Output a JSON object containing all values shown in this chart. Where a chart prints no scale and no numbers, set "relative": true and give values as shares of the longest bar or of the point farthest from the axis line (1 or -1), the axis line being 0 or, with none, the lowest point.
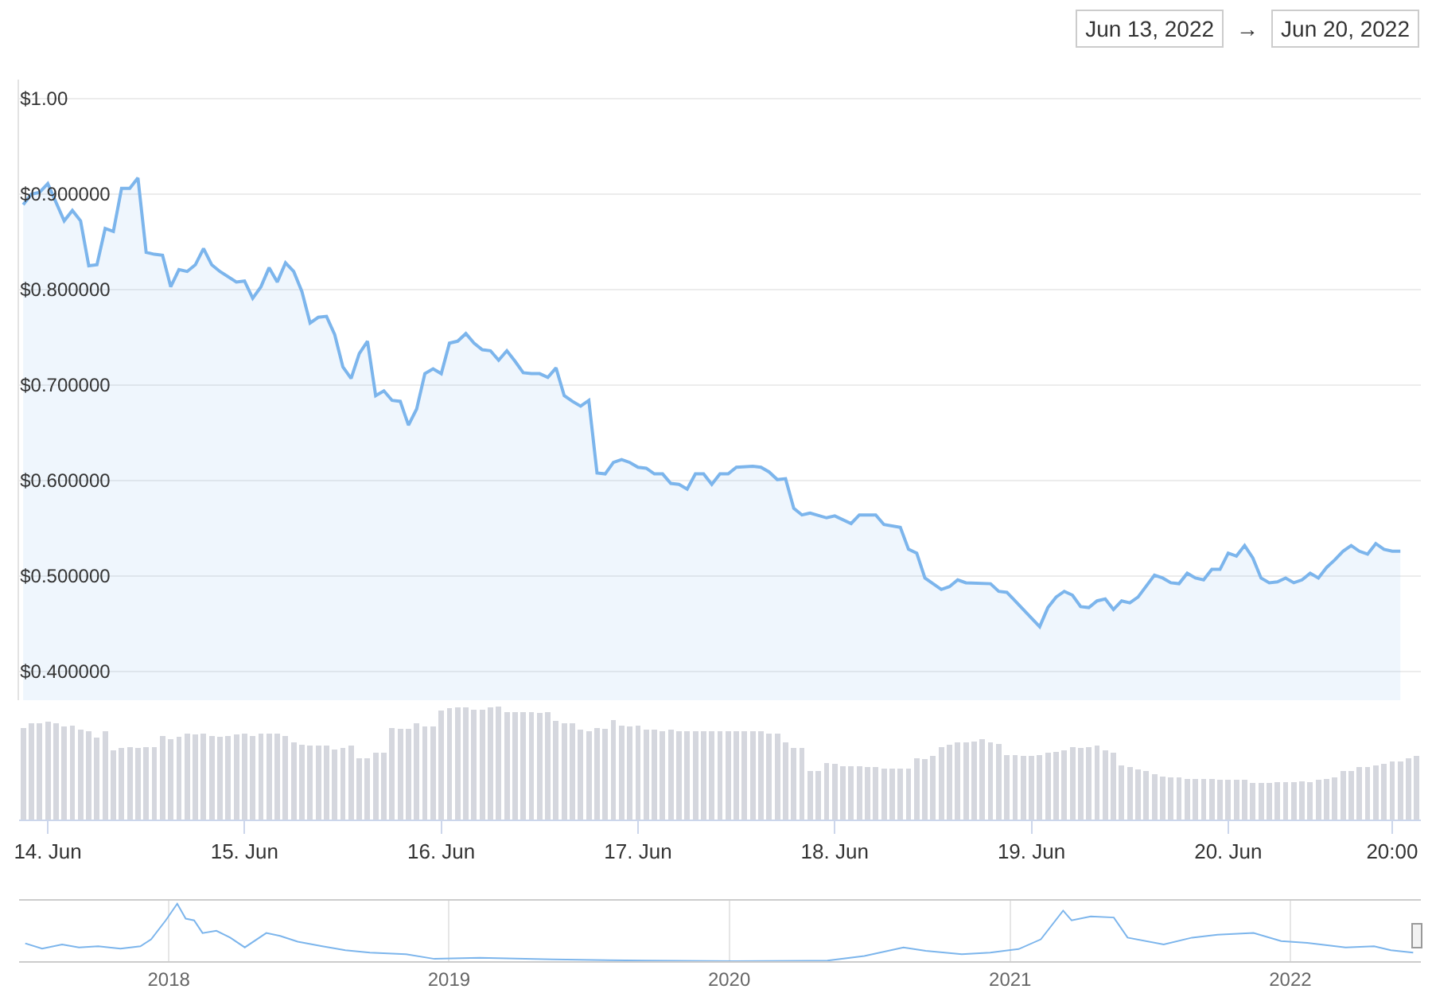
{
  "chart_data": [
    {
      "type": "area",
      "color": "#7cb5ec",
      "grid": "y",
      "tick_labels": "y",
      "annotations": [
        "Jun 13, 2022",
        "→",
        "Jun 20, 2022"
      ],
      "xlim": [
        "2022-06-13T20:30",
        "2022-06-20T23:30"
      ],
      "ylim": [
        0.37,
        1.02
      ],
      "yticks": [
        {
          "value": 1,
          "label": "$1.00"
        },
        {
          "value": 0.9,
          "label": "$0.900000"
        },
        {
          "value": 0.8,
          "label": "$0.800000"
        },
        {
          "value": 0.7,
          "label": "$0.700000"
        },
        {
          "value": 0.6,
          "label": "$0.600000"
        },
        {
          "value": 0.5,
          "label": "$0.500000"
        },
        {
          "value": 0.4,
          "label": "$0.400000"
        }
      ],
      "x": [
        "2022-06-13T21:00",
        "2022-06-13T22:00",
        "2022-06-13T23:00",
        "2022-06-14T00:00",
        "2022-06-14T02:00",
        "2022-06-14T03:00",
        "2022-06-14T04:00",
        "2022-06-14T05:00",
        "2022-06-14T06:00",
        "2022-06-14T07:00",
        "2022-06-14T08:00",
        "2022-06-14T09:00",
        "2022-06-14T10:00",
        "2022-06-14T11:00",
        "2022-06-14T12:00",
        "2022-06-14T13:00",
        "2022-06-14T14:00",
        "2022-06-14T15:00",
        "2022-06-14T16:00",
        "2022-06-14T17:00",
        "2022-06-14T18:00",
        "2022-06-14T19:00",
        "2022-06-14T20:00",
        "2022-06-14T21:00",
        "2022-06-14T23:00",
        "2022-06-15T00:00",
        "2022-06-15T01:00",
        "2022-06-15T02:00",
        "2022-06-15T03:00",
        "2022-06-15T04:00",
        "2022-06-15T05:00",
        "2022-06-15T06:00",
        "2022-06-15T07:00",
        "2022-06-15T08:00",
        "2022-06-15T09:00",
        "2022-06-15T10:00",
        "2022-06-15T11:00",
        "2022-06-15T12:00",
        "2022-06-15T13:00",
        "2022-06-15T14:00",
        "2022-06-15T15:00",
        "2022-06-15T16:00",
        "2022-06-15T17:00",
        "2022-06-15T18:00",
        "2022-06-15T19:00",
        "2022-06-15T20:00",
        "2022-06-15T21:00",
        "2022-06-15T22:00",
        "2022-06-15T23:00",
        "2022-06-16T00:00",
        "2022-06-16T01:00",
        "2022-06-16T02:00",
        "2022-06-16T03:00",
        "2022-06-16T04:00",
        "2022-06-16T05:00",
        "2022-06-16T06:00",
        "2022-06-16T07:00",
        "2022-06-16T08:00",
        "2022-06-16T09:00",
        "2022-06-16T10:00",
        "2022-06-16T11:00",
        "2022-06-16T12:00",
        "2022-06-16T13:00",
        "2022-06-16T14:00",
        "2022-06-16T15:00",
        "2022-06-16T16:00",
        "2022-06-16T17:00",
        "2022-06-16T18:00",
        "2022-06-16T19:00",
        "2022-06-16T20:00",
        "2022-06-16T21:00",
        "2022-06-16T22:00",
        "2022-06-16T23:00",
        "2022-06-17T00:00",
        "2022-06-17T01:00",
        "2022-06-17T02:00",
        "2022-06-17T03:00",
        "2022-06-17T04:00",
        "2022-06-17T05:00",
        "2022-06-17T06:00",
        "2022-06-17T07:00",
        "2022-06-17T08:00",
        "2022-06-17T09:00",
        "2022-06-17T10:00",
        "2022-06-17T11:00",
        "2022-06-17T12:00",
        "2022-06-17T14:00",
        "2022-06-17T15:00",
        "2022-06-17T16:00",
        "2022-06-17T17:00",
        "2022-06-17T18:00",
        "2022-06-17T19:00",
        "2022-06-17T20:00",
        "2022-06-17T21:00",
        "2022-06-17T23:00",
        "2022-06-18T00:00",
        "2022-06-18T02:00",
        "2022-06-18T03:00",
        "2022-06-18T05:00",
        "2022-06-18T06:00",
        "2022-06-18T08:00",
        "2022-06-18T09:00",
        "2022-06-18T10:00",
        "2022-06-18T11:00",
        "2022-06-18T12:00",
        "2022-06-18T13:00",
        "2022-06-18T14:00",
        "2022-06-18T15:00",
        "2022-06-18T16:00",
        "2022-06-18T19:00",
        "2022-06-18T20:00",
        "2022-06-18T21:00",
        "2022-06-19T01:00",
        "2022-06-19T02:00",
        "2022-06-19T03:00",
        "2022-06-19T04:00",
        "2022-06-19T05:00",
        "2022-06-19T06:00",
        "2022-06-19T07:00",
        "2022-06-19T08:00",
        "2022-06-19T09:00",
        "2022-06-19T10:00",
        "2022-06-19T11:00",
        "2022-06-19T12:00",
        "2022-06-19T13:00",
        "2022-06-19T15:00",
        "2022-06-19T16:00",
        "2022-06-19T17:00",
        "2022-06-19T18:00",
        "2022-06-19T19:00",
        "2022-06-19T20:00",
        "2022-06-19T21:00",
        "2022-06-19T22:00",
        "2022-06-19T23:00",
        "2022-06-20T00:00",
        "2022-06-20T01:00",
        "2022-06-20T02:00",
        "2022-06-20T03:00",
        "2022-06-20T04:00",
        "2022-06-20T05:00",
        "2022-06-20T06:00",
        "2022-06-20T07:00",
        "2022-06-20T08:00",
        "2022-06-20T09:00",
        "2022-06-20T10:00",
        "2022-06-20T11:00",
        "2022-06-20T12:00",
        "2022-06-20T13:00",
        "2022-06-20T14:00",
        "2022-06-20T15:00",
        "2022-06-20T16:00",
        "2022-06-20T17:00",
        "2022-06-20T18:00",
        "2022-06-20T19:00",
        "2022-06-20T20:00",
        "2022-06-20T21:00"
      ],
      "values": [
        0.889,
        0.9,
        0.902,
        0.911,
        0.872,
        0.883,
        0.872,
        0.825,
        0.826,
        0.864,
        0.861,
        0.906,
        0.906,
        0.917,
        0.839,
        0.837,
        0.836,
        0.803,
        0.821,
        0.819,
        0.826,
        0.843,
        0.826,
        0.819,
        0.808,
        0.809,
        0.791,
        0.803,
        0.823,
        0.808,
        0.828,
        0.819,
        0.798,
        0.765,
        0.771,
        0.772,
        0.753,
        0.719,
        0.707,
        0.733,
        0.746,
        0.689,
        0.694,
        0.684,
        0.683,
        0.658,
        0.675,
        0.712,
        0.717,
        0.712,
        0.744,
        0.746,
        0.754,
        0.744,
        0.737,
        0.736,
        0.726,
        0.736,
        0.725,
        0.713,
        0.712,
        0.712,
        0.708,
        0.718,
        0.689,
        0.683,
        0.678,
        0.684,
        0.608,
        0.607,
        0.619,
        0.622,
        0.619,
        0.614,
        0.613,
        0.607,
        0.607,
        0.597,
        0.596,
        0.591,
        0.607,
        0.607,
        0.596,
        0.607,
        0.607,
        0.614,
        0.615,
        0.614,
        0.609,
        0.601,
        0.602,
        0.571,
        0.564,
        0.566,
        0.561,
        0.563,
        0.555,
        0.564,
        0.564,
        0.554,
        0.551,
        0.528,
        0.524,
        0.498,
        0.492,
        0.486,
        0.489,
        0.496,
        0.493,
        0.492,
        0.484,
        0.483,
        0.447,
        0.467,
        0.478,
        0.484,
        0.48,
        0.468,
        0.467,
        0.474,
        0.476,
        0.465,
        0.474,
        0.472,
        0.478,
        0.501,
        0.498,
        0.493,
        0.492,
        0.503,
        0.498,
        0.496,
        0.507,
        0.507,
        0.524,
        0.521,
        0.532,
        0.519,
        0.498,
        0.493,
        0.494,
        0.498,
        0.493,
        0.496,
        0.503,
        0.498,
        0.509,
        0.517,
        0.526,
        0.532,
        0.526,
        0.523,
        0.534,
        0.528,
        0.526,
        0.526
      ]
    },
    {
      "type": "bar",
      "relative": true,
      "color": "#d5d7de",
      "tick_labels": "x",
      "xlim": [
        "2022-06-13T20:30",
        "2022-06-20T23:30"
      ],
      "xticks": [
        {
          "value": "2022-06-14",
          "label": "14. Jun"
        },
        {
          "value": "2022-06-15",
          "label": "15. Jun"
        },
        {
          "value": "2022-06-16",
          "label": "16. Jun"
        },
        {
          "value": "2022-06-17",
          "label": "17. Jun"
        },
        {
          "value": "2022-06-18",
          "label": "18. Jun"
        },
        {
          "value": "2022-06-19",
          "label": "19. Jun"
        },
        {
          "value": "2022-06-20",
          "label": "20. Jun"
        },
        {
          "value": "2022-06-20T20:00",
          "label": "20:00"
        }
      ],
      "x": [
        "2022-06-13T21:00",
        "2022-06-13T22:00",
        "2022-06-13T23:00",
        "2022-06-14T00:00",
        "2022-06-14T01:00",
        "2022-06-14T02:00",
        "2022-06-14T03:00",
        "2022-06-14T04:00",
        "2022-06-14T05:00",
        "2022-06-14T06:00",
        "2022-06-14T07:00",
        "2022-06-14T08:00",
        "2022-06-14T09:00",
        "2022-06-14T10:00",
        "2022-06-14T11:00",
        "2022-06-14T12:00",
        "2022-06-14T13:00",
        "2022-06-14T14:00",
        "2022-06-14T15:00",
        "2022-06-14T16:00",
        "2022-06-14T17:00",
        "2022-06-14T18:00",
        "2022-06-14T19:00",
        "2022-06-14T20:00",
        "2022-06-14T21:00",
        "2022-06-14T22:00",
        "2022-06-14T23:00",
        "2022-06-15T00:00",
        "2022-06-15T01:00",
        "2022-06-15T02:00",
        "2022-06-15T03:00",
        "2022-06-15T04:00",
        "2022-06-15T05:00",
        "2022-06-15T06:00",
        "2022-06-15T07:00",
        "2022-06-15T08:00",
        "2022-06-15T09:00",
        "2022-06-15T10:00",
        "2022-06-15T11:00",
        "2022-06-15T12:00",
        "2022-06-15T13:00",
        "2022-06-15T14:00",
        "2022-06-15T15:00",
        "2022-06-15T16:00",
        "2022-06-15T17:00",
        "2022-06-15T18:00",
        "2022-06-15T19:00",
        "2022-06-15T20:00",
        "2022-06-15T21:00",
        "2022-06-15T22:00",
        "2022-06-15T23:00",
        "2022-06-16T00:00",
        "2022-06-16T01:00",
        "2022-06-16T02:00",
        "2022-06-16T03:00",
        "2022-06-16T04:00",
        "2022-06-16T05:00",
        "2022-06-16T06:00",
        "2022-06-16T07:00",
        "2022-06-16T08:00",
        "2022-06-16T09:00",
        "2022-06-16T10:00",
        "2022-06-16T11:00",
        "2022-06-16T12:00",
        "2022-06-16T13:00",
        "2022-06-16T14:00",
        "2022-06-16T15:00",
        "2022-06-16T16:00",
        "2022-06-16T17:00",
        "2022-06-16T18:00",
        "2022-06-16T19:00",
        "2022-06-16T20:00",
        "2022-06-16T21:00",
        "2022-06-16T22:00",
        "2022-06-16T23:00",
        "2022-06-17T00:00",
        "2022-06-17T01:00",
        "2022-06-17T02:00",
        "2022-06-17T03:00",
        "2022-06-17T04:00",
        "2022-06-17T05:00",
        "2022-06-17T06:00",
        "2022-06-17T07:00",
        "2022-06-17T08:00",
        "2022-06-17T09:00",
        "2022-06-17T10:00",
        "2022-06-17T11:00",
        "2022-06-17T12:00",
        "2022-06-17T13:00",
        "2022-06-17T14:00",
        "2022-06-17T15:00",
        "2022-06-17T16:00",
        "2022-06-17T17:00",
        "2022-06-17T18:00",
        "2022-06-17T19:00",
        "2022-06-17T20:00",
        "2022-06-17T21:00",
        "2022-06-17T22:00",
        "2022-06-17T23:00",
        "2022-06-18T00:00",
        "2022-06-18T01:00",
        "2022-06-18T02:00",
        "2022-06-18T03:00",
        "2022-06-18T04:00",
        "2022-06-18T05:00",
        "2022-06-18T06:00",
        "2022-06-18T07:00",
        "2022-06-18T08:00",
        "2022-06-18T09:00",
        "2022-06-18T10:00",
        "2022-06-18T11:00",
        "2022-06-18T12:00",
        "2022-06-18T13:00",
        "2022-06-18T14:00",
        "2022-06-18T15:00",
        "2022-06-18T16:00",
        "2022-06-18T17:00",
        "2022-06-18T18:00",
        "2022-06-18T19:00",
        "2022-06-18T20:00",
        "2022-06-18T21:00",
        "2022-06-18T22:00",
        "2022-06-18T23:00",
        "2022-06-19T00:00",
        "2022-06-19T01:00",
        "2022-06-19T02:00",
        "2022-06-19T03:00",
        "2022-06-19T04:00",
        "2022-06-19T05:00",
        "2022-06-19T06:00",
        "2022-06-19T07:00",
        "2022-06-19T08:00",
        "2022-06-19T09:00",
        "2022-06-19T10:00",
        "2022-06-19T11:00",
        "2022-06-19T12:00",
        "2022-06-19T13:00",
        "2022-06-19T14:00",
        "2022-06-19T15:00",
        "2022-06-19T16:00",
        "2022-06-19T17:00",
        "2022-06-19T18:00",
        "2022-06-19T19:00",
        "2022-06-19T20:00",
        "2022-06-19T21:00",
        "2022-06-19T22:00",
        "2022-06-19T23:00",
        "2022-06-20T00:00",
        "2022-06-20T01:00",
        "2022-06-20T02:00",
        "2022-06-20T03:00",
        "2022-06-20T04:00",
        "2022-06-20T05:00",
        "2022-06-20T06:00",
        "2022-06-20T07:00",
        "2022-06-20T08:00",
        "2022-06-20T09:00",
        "2022-06-20T10:00",
        "2022-06-20T11:00",
        "2022-06-20T12:00",
        "2022-06-20T13:00",
        "2022-06-20T14:00",
        "2022-06-20T15:00",
        "2022-06-20T16:00",
        "2022-06-20T17:00",
        "2022-06-20T18:00",
        "2022-06-20T19:00",
        "2022-06-20T20:00",
        "2022-06-20T21:00",
        "2022-06-20T22:00",
        "2022-06-20T23:00"
      ],
      "values": [
        0.81,
        0.85,
        0.85,
        0.86,
        0.85,
        0.82,
        0.83,
        0.79,
        0.78,
        0.72,
        0.78,
        0.61,
        0.63,
        0.64,
        0.63,
        0.64,
        0.64,
        0.74,
        0.71,
        0.73,
        0.76,
        0.75,
        0.76,
        0.74,
        0.73,
        0.74,
        0.75,
        0.76,
        0.74,
        0.76,
        0.76,
        0.76,
        0.74,
        0.68,
        0.66,
        0.65,
        0.65,
        0.65,
        0.62,
        0.63,
        0.65,
        0.54,
        0.54,
        0.59,
        0.59,
        0.81,
        0.8,
        0.8,
        0.85,
        0.82,
        0.82,
        0.96,
        0.98,
        0.99,
        0.99,
        0.97,
        0.97,
        0.99,
        1,
        0.95,
        0.95,
        0.95,
        0.95,
        0.94,
        0.95,
        0.87,
        0.85,
        0.85,
        0.79,
        0.78,
        0.81,
        0.8,
        0.88,
        0.83,
        0.82,
        0.83,
        0.79,
        0.79,
        0.78,
        0.79,
        0.78,
        0.78,
        0.78,
        0.78,
        0.78,
        0.78,
        0.78,
        0.78,
        0.78,
        0.78,
        0.78,
        0.76,
        0.76,
        0.68,
        0.63,
        0.63,
        0.43,
        0.43,
        0.5,
        0.49,
        0.47,
        0.47,
        0.47,
        0.46,
        0.46,
        0.45,
        0.45,
        0.45,
        0.45,
        0.54,
        0.53,
        0.56,
        0.64,
        0.66,
        0.68,
        0.68,
        0.69,
        0.71,
        0.68,
        0.67,
        0.57,
        0.57,
        0.56,
        0.56,
        0.57,
        0.59,
        0.6,
        0.61,
        0.64,
        0.63,
        0.64,
        0.65,
        0.61,
        0.59,
        0.48,
        0.46,
        0.44,
        0.43,
        0.4,
        0.38,
        0.37,
        0.37,
        0.36,
        0.36,
        0.36,
        0.36,
        0.35,
        0.35,
        0.35,
        0.35,
        0.32,
        0.32,
        0.32,
        0.33,
        0.33,
        0.33,
        0.34,
        0.33,
        0.35,
        0.36,
        0.37,
        0.43,
        0.43,
        0.46,
        0.46,
        0.48,
        0.49,
        0.51,
        0.51,
        0.54,
        0.56
      ]
    },
    {
      "type": "line",
      "relative": true,
      "color": "#7cb5ec",
      "grid": "x",
      "tick_labels": "x",
      "xlim": [
        "2017-06-20",
        "2022-06-20"
      ],
      "xticks": [
        {
          "value": "2018-01-01",
          "label": "2018"
        },
        {
          "value": "2019-01-01",
          "label": "2019"
        },
        {
          "value": "2020-01-01",
          "label": "2020"
        },
        {
          "value": "2021-01-01",
          "label": "2021"
        },
        {
          "value": "2022-01-01",
          "label": "2022"
        }
      ],
      "x": [
        "2017-06-28",
        "2017-07-20",
        "2017-08-15",
        "2017-09-06",
        "2017-10-01",
        "2017-10-30",
        "2017-11-25",
        "2017-12-09",
        "2017-12-28",
        "2018-01-12",
        "2018-01-23",
        "2018-02-03",
        "2018-02-14",
        "2018-03-04",
        "2018-03-22",
        "2018-04-10",
        "2018-05-08",
        "2018-05-26",
        "2018-06-18",
        "2018-07-20",
        "2018-08-19",
        "2018-09-20",
        "2018-11-06",
        "2018-12-13",
        "2019-02-10",
        "2019-05-16",
        "2019-09-13",
        "2020-01-08",
        "2020-05-08",
        "2020-06-25",
        "2020-08-15",
        "2020-09-13",
        "2020-10-30",
        "2020-12-06",
        "2021-01-12",
        "2021-02-10",
        "2021-03-11",
        "2021-03-22",
        "2021-04-16",
        "2021-05-16",
        "2021-06-03",
        "2021-07-20",
        "2021-08-26",
        "2021-09-28",
        "2021-11-14",
        "2021-12-20",
        "2022-01-23",
        "2022-03-14",
        "2022-04-20",
        "2022-05-12",
        "2022-06-10"
      ],
      "values": [
        0.31,
        0.22,
        0.29,
        0.24,
        0.26,
        0.22,
        0.26,
        0.38,
        0.71,
        1,
        0.74,
        0.71,
        0.49,
        0.53,
        0.41,
        0.24,
        0.49,
        0.44,
        0.34,
        0.26,
        0.19,
        0.15,
        0.12,
        0.04,
        0.06,
        0.03,
        0.01,
        0,
        0.01,
        0.09,
        0.24,
        0.18,
        0.12,
        0.15,
        0.21,
        0.38,
        0.88,
        0.71,
        0.78,
        0.76,
        0.41,
        0.29,
        0.41,
        0.46,
        0.49,
        0.35,
        0.32,
        0.24,
        0.26,
        0.19,
        0.15
      ]
    }
  ]
}
